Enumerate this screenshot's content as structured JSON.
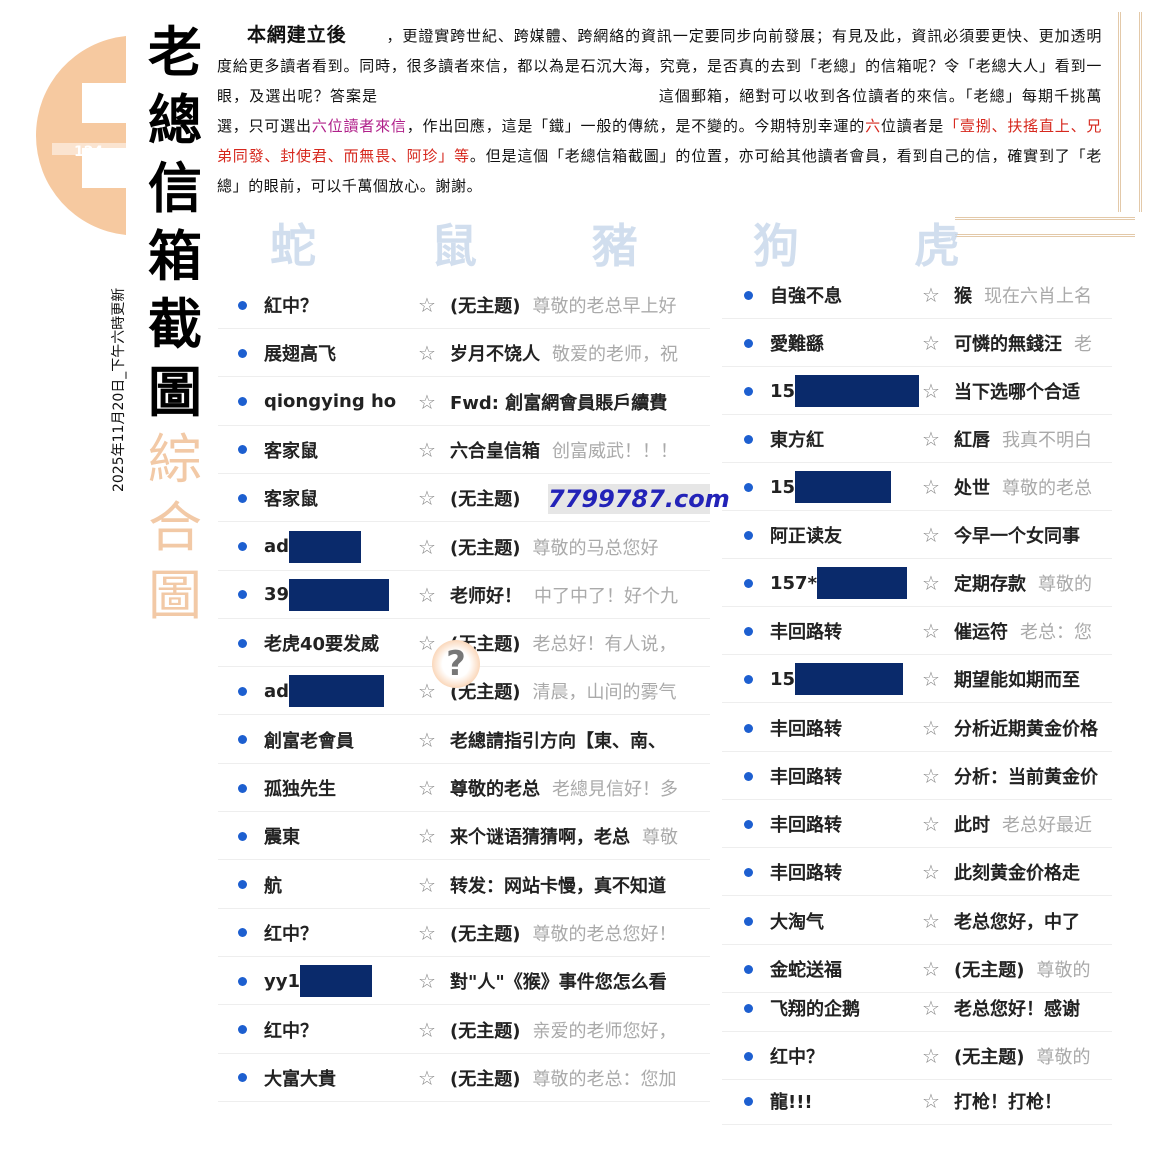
{
  "logo": {
    "number": "124",
    "color": "#f6c9a0"
  },
  "title": {
    "chars": [
      "老",
      "總",
      "信",
      "箱",
      "截",
      "圖"
    ],
    "sub_chars": [
      "綜",
      "合",
      "圖"
    ]
  },
  "date": "2025年11月20日_下午六時更新",
  "intro": {
    "lead": "本網建立後",
    "p1": "，更證實跨世紀、跨媒體、跨網絡的資訊一定要同步向前發展；有見及此，資訊必須要更快、更加透明度給更多讀者看到。同時，很多讀者來信，都以為是石沉大海，究竟，是否真的去到「老總」的信箱呢？令「老總大人」看到一眼，及選出呢？答案是",
    "p2": "這個郵箱，絕對可以收到各位讀者的來信。「老總」每期千挑萬選，只可選出",
    "highlight1": "六位讀者來信",
    "p3": "，作出回應，這是「鐵」一般的傳統，是不變的。今期特別幸運的",
    "highlight2": "六",
    "p4": "位讀者是",
    "winners": "「壹捌、扶搖直上、兄弟同發、封使君、而無畏、阿珍」等",
    "p5": "。但是這個「老總信箱截圖」的位置，亦可給其他讀者會員，看到自己的信，確實到了「老總」的眼前，可以千萬個放心。謝謝。",
    "colors": {
      "highlight1": "#b0208a",
      "winners": "#d6281e"
    }
  },
  "zodiac": [
    "蛇",
    "鼠",
    "豬",
    "狗",
    "虎"
  ],
  "watermark": "7799787.com",
  "help_icon": "?",
  "left_list": [
    {
      "sender": "紅中？",
      "redacted": false,
      "subject": "(无主题)",
      "preview": "尊敬的老总早上好"
    },
    {
      "sender": "展翅高飞",
      "redacted": false,
      "subject": "岁月不饶人",
      "preview": "敬爱的老师，祝"
    },
    {
      "sender": "qiongying ho",
      "redacted": false,
      "subject": "Fwd: 創富網會員賬戶續費",
      "preview": ""
    },
    {
      "sender": "客家鼠",
      "redacted": false,
      "subject": "六合皇信箱",
      "preview": "创富威武！！！"
    },
    {
      "sender": "客家鼠",
      "redacted": false,
      "subject": "(无主题)",
      "preview": ""
    },
    {
      "sender": "ad",
      "redacted": true,
      "subject": "(无主题)",
      "preview": "尊敬的马总您好"
    },
    {
      "sender": "39",
      "redacted": true,
      "subject": "老师好！",
      "preview": "中了中了！好个九"
    },
    {
      "sender": "老虎40要发威",
      "redacted": false,
      "subject": "(无主题)",
      "preview": "老总好！有人说，"
    },
    {
      "sender": "ad",
      "redacted": true,
      "subject": "(无主题)",
      "preview": "清晨，山间的雾气"
    },
    {
      "sender": "創富老會員",
      "redacted": false,
      "subject": "老總請指引方向【東、南、",
      "preview": ""
    },
    {
      "sender": "孤独先生",
      "redacted": false,
      "subject": "尊敬的老总",
      "preview": "老總見信好！多"
    },
    {
      "sender": "震東",
      "redacted": false,
      "subject": "来个谜语猜猜啊，老总",
      "preview": "尊敬"
    },
    {
      "sender": "航",
      "redacted": false,
      "subject": "转发：网站卡慢，真不知道",
      "preview": ""
    },
    {
      "sender": "红中？",
      "redacted": false,
      "subject": "(无主题)",
      "preview": "尊敬的老总您好！"
    },
    {
      "sender": "yy1",
      "redacted": true,
      "subject": "對\"人\"《猴》事件您怎么看",
      "preview": ""
    },
    {
      "sender": "红中？",
      "redacted": false,
      "subject": "(无主题)",
      "preview": "亲爱的老师您好，"
    },
    {
      "sender": "大富大貴",
      "redacted": false,
      "subject": "(无主题)",
      "preview": "尊敬的老总：您加"
    }
  ],
  "right_list": [
    {
      "sender": "自強不息",
      "redacted": false,
      "subject": "猴",
      "preview": "现在六肖上名"
    },
    {
      "sender": "愛難繇",
      "redacted": false,
      "subject": "可憐的無錢汪",
      "preview": "老"
    },
    {
      "sender": "15",
      "redacted": true,
      "subject": "当下选哪个合适",
      "preview": ""
    },
    {
      "sender": "東方紅",
      "redacted": false,
      "subject": "紅唇",
      "preview": "我真不明白"
    },
    {
      "sender": "15",
      "redacted": true,
      "subject": "处世",
      "preview": "尊敬的老总"
    },
    {
      "sender": "阿正读友",
      "redacted": false,
      "subject": "今早一个女同事",
      "preview": ""
    },
    {
      "sender": "157*",
      "redacted": true,
      "subject": "定期存款",
      "preview": "尊敬的"
    },
    {
      "sender": "丰回路转",
      "redacted": false,
      "subject": "催运符",
      "preview": "老总：您"
    },
    {
      "sender": "15",
      "redacted": true,
      "subject": "期望能如期而至",
      "preview": ""
    },
    {
      "sender": "丰回路转",
      "redacted": false,
      "subject": "分析近期黄金价格",
      "preview": ""
    },
    {
      "sender": "丰回路转",
      "redacted": false,
      "subject": "分析：当前黄金价",
      "preview": ""
    },
    {
      "sender": "丰回路转",
      "redacted": false,
      "subject": "此时",
      "preview": "老总好最近"
    },
    {
      "sender": "丰回路转",
      "redacted": false,
      "subject": "此刻黄金价格走",
      "preview": ""
    },
    {
      "sender": "大淘气",
      "redacted": false,
      "subject": "老总您好，中了",
      "preview": ""
    },
    {
      "sender": "金蛇送福",
      "redacted": false,
      "subject": "(无主题)",
      "preview": "尊敬的"
    },
    {
      "sender": "飞翔的企鹅",
      "redacted": false,
      "subject": "老总您好！感谢",
      "preview": ""
    },
    {
      "sender": "红中？",
      "redacted": false,
      "subject": "(无主题)",
      "preview": "尊敬的"
    },
    {
      "sender": "龍!!!",
      "redacted": false,
      "subject": "打枪！打枪！",
      "preview": ""
    }
  ]
}
